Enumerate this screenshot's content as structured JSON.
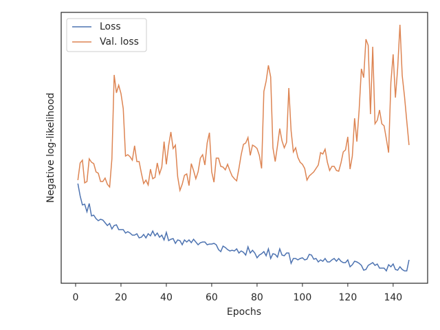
{
  "chart_data": {
    "type": "line",
    "xlabel": "Epochs",
    "ylabel": "Negative log-likelihood",
    "x": [
      1,
      2,
      3,
      4,
      5,
      6,
      7,
      8,
      9,
      10,
      11,
      12,
      13,
      14,
      15,
      16,
      17,
      18,
      19,
      20,
      21,
      22,
      23,
      24,
      25,
      26,
      27,
      28,
      29,
      30,
      31,
      32,
      33,
      34,
      35,
      36,
      37,
      38,
      39,
      40,
      41,
      42,
      43,
      44,
      45,
      46,
      47,
      48,
      49,
      50,
      51,
      52,
      53,
      54,
      55,
      56,
      57,
      58,
      59,
      60,
      61,
      62,
      63,
      64,
      65,
      66,
      67,
      68,
      69,
      70,
      71,
      72,
      73,
      74,
      75,
      76,
      77,
      78,
      79,
      80,
      81,
      82,
      83,
      84,
      85,
      86,
      87,
      88,
      89,
      90,
      91,
      92,
      93,
      94,
      95,
      96,
      97,
      98,
      99,
      100,
      101,
      102,
      103,
      104,
      105,
      106,
      107,
      108,
      109,
      110,
      111,
      112,
      113,
      114,
      115,
      116,
      117,
      118,
      119,
      120,
      121,
      122,
      123,
      124,
      125,
      126,
      127,
      128,
      129,
      130,
      131,
      132,
      133,
      134,
      135,
      136,
      137,
      138,
      139,
      140,
      141,
      142,
      143,
      144,
      145,
      146,
      147
    ],
    "series": [
      {
        "name": "Loss",
        "color": "#4c72b0",
        "values": [
          145,
          127,
          114,
          115,
          104,
          116,
          98,
          99,
          94,
          91,
          93,
          92,
          88,
          84,
          87,
          79,
          84,
          85,
          78,
          78,
          78,
          73,
          75,
          73,
          70,
          70,
          72,
          66,
          67,
          71,
          66,
          72,
          69,
          76,
          69,
          73,
          67,
          70,
          63,
          74,
          62,
          64,
          65,
          58,
          63,
          62,
          56,
          63,
          60,
          63,
          59,
          64,
          60,
          56,
          59,
          60,
          60,
          56,
          57,
          57,
          58,
          56,
          49,
          46,
          54,
          52,
          49,
          47,
          48,
          47,
          50,
          44,
          47,
          45,
          41,
          53,
          44,
          48,
          44,
          37,
          41,
          43,
          46,
          40,
          50,
          36,
          43,
          42,
          38,
          50,
          41,
          40,
          44,
          44,
          29,
          36,
          36,
          34,
          36,
          37,
          34,
          35,
          42,
          41,
          35,
          36,
          31,
          34,
          32,
          36,
          31,
          31,
          34,
          36,
          32,
          36,
          32,
          30,
          30,
          34,
          24,
          27,
          32,
          31,
          29,
          26,
          19,
          20,
          26,
          28,
          30,
          26,
          28,
          22,
          22,
          22,
          18,
          27,
          24,
          28,
          20,
          19,
          24,
          20,
          18,
          18,
          34
        ]
      },
      {
        "name": "Val. loss",
        "color": "#dd8452",
        "values": [
          150,
          175,
          179,
          146,
          148,
          181,
          176,
          174,
          162,
          160,
          148,
          148,
          153,
          144,
          140,
          181,
          303,
          277,
          288,
          276,
          254,
          185,
          187,
          184,
          179,
          200,
          177,
          177,
          160,
          145,
          150,
          143,
          166,
          152,
          154,
          175,
          159,
          169,
          206,
          173,
          200,
          220,
          196,
          201,
          155,
          135,
          144,
          157,
          159,
          142,
          174,
          164,
          152,
          162,
          182,
          187,
          172,
          204,
          219,
          162,
          147,
          182,
          182,
          170,
          169,
          165,
          173,
          164,
          156,
          152,
          149,
          167,
          187,
          202,
          204,
          212,
          186,
          201,
          199,
          196,
          186,
          167,
          279,
          294,
          317,
          300,
          197,
          177,
          200,
          225,
          207,
          197,
          205,
          284,
          222,
          191,
          197,
          183,
          176,
          173,
          167,
          150,
          156,
          159,
          162,
          167,
          172,
          190,
          188,
          195,
          176,
          164,
          170,
          170,
          164,
          163,
          175,
          191,
          194,
          213,
          166,
          185,
          240,
          206,
          252,
          312,
          299,
          355,
          346,
          246,
          344,
          232,
          237,
          252,
          232,
          229,
          210,
          190,
          292,
          333,
          270,
          313,
          376,
          302,
          272,
          236,
          201
        ]
      }
    ],
    "xlim": [
      -6.36,
      155.2
    ],
    "ylim": [
      0,
      394
    ],
    "xticks": [
      0,
      20,
      40,
      60,
      80,
      100,
      120,
      140
    ],
    "legend": "upper left"
  }
}
